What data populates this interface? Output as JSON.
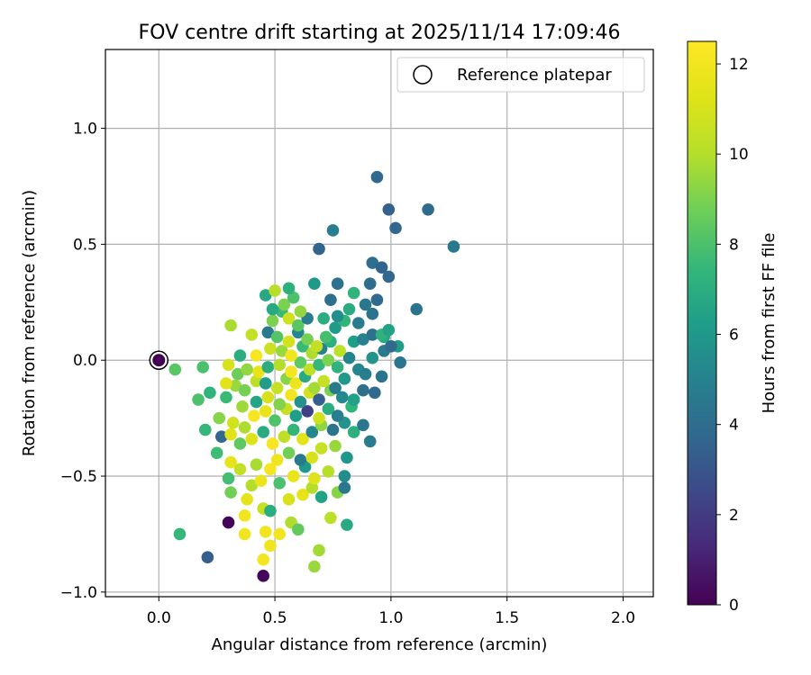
{
  "chart_data": {
    "type": "scatter",
    "title": "FOV centre drift starting at 2025/11/14 17:09:46",
    "xlabel": "Angular distance from reference (arcmin)",
    "ylabel": "Rotation from reference (arcmin)",
    "xlim": [
      -0.23,
      2.13
    ],
    "ylim": [
      -1.02,
      1.34
    ],
    "xticks": [
      "0.0",
      "0.5",
      "1.0",
      "1.5",
      "2.0"
    ],
    "xtick_values": [
      0,
      0.5,
      1.0,
      1.5,
      2.0
    ],
    "yticks": [
      "−1.0",
      "−0.5",
      "0.0",
      "0.5",
      "1.0"
    ],
    "ytick_values": [
      -1.0,
      -0.5,
      0,
      0.5,
      1.0
    ],
    "grid": true,
    "legend": {
      "label": "Reference platepar",
      "placement": "top-right"
    },
    "reference_point": {
      "x": 0,
      "y": 0
    },
    "colorbar": {
      "label": "Hours from first FF file",
      "min": 0,
      "max": 12.5,
      "ticks": [
        "0",
        "2",
        "4",
        "6",
        "8",
        "10",
        "12"
      ],
      "tick_values": [
        0,
        2,
        4,
        6,
        8,
        10,
        12
      ]
    },
    "points": [
      [
        0.45,
        -0.93,
        0.2
      ],
      [
        0.67,
        -0.89,
        9.5
      ],
      [
        0.21,
        -0.85,
        3.4
      ],
      [
        0.45,
        -0.86,
        12.1
      ],
      [
        0.48,
        -0.8,
        12.0
      ],
      [
        0.09,
        -0.75,
        7.5
      ],
      [
        0.3,
        -0.7,
        0.1
      ],
      [
        0.37,
        -0.75,
        12.0
      ],
      [
        0.46,
        -0.74,
        12.0
      ],
      [
        0.52,
        -0.75,
        12.0
      ],
      [
        0.57,
        -0.7,
        9.9
      ],
      [
        0.69,
        -0.82,
        9.7
      ],
      [
        0.81,
        -0.71,
        6.8
      ],
      [
        0.74,
        -0.68,
        10.2
      ],
      [
        0.6,
        -0.73,
        8.5
      ],
      [
        0.37,
        -0.67,
        12.0
      ],
      [
        0.45,
        -0.64,
        10.5
      ],
      [
        0.38,
        -0.6,
        11.5
      ],
      [
        0.48,
        -0.65,
        7.0
      ],
      [
        0.56,
        -0.6,
        11.0
      ],
      [
        0.62,
        -0.58,
        11.6
      ],
      [
        0.66,
        -0.55,
        10.0
      ],
      [
        0.7,
        -0.59,
        6.5
      ],
      [
        0.77,
        -0.57,
        9.2
      ],
      [
        0.8,
        -0.55,
        4.5
      ],
      [
        0.31,
        -0.57,
        8.8
      ],
      [
        0.4,
        -0.54,
        10.0
      ],
      [
        0.44,
        -0.52,
        11.8
      ],
      [
        0.48,
        -0.47,
        12.2
      ],
      [
        0.52,
        -0.53,
        8.0
      ],
      [
        0.58,
        -0.5,
        11.7
      ],
      [
        0.63,
        -0.46,
        6.0
      ],
      [
        0.67,
        -0.51,
        11.3
      ],
      [
        0.73,
        -0.48,
        10.1
      ],
      [
        0.8,
        -0.5,
        5.5
      ],
      [
        0.3,
        -0.51,
        7.8
      ],
      [
        0.35,
        -0.47,
        10.4
      ],
      [
        0.42,
        -0.45,
        9.8
      ],
      [
        0.51,
        -0.43,
        11.9
      ],
      [
        0.56,
        -0.4,
        8.8
      ],
      [
        0.61,
        -0.43,
        4.6
      ],
      [
        0.66,
        -0.42,
        11.0
      ],
      [
        0.7,
        -0.38,
        10.5
      ],
      [
        0.76,
        -0.37,
        9.5
      ],
      [
        0.81,
        -0.42,
        5.9
      ],
      [
        0.25,
        -0.4,
        7.7
      ],
      [
        0.31,
        -0.44,
        11.6
      ],
      [
        0.35,
        -0.36,
        8.4
      ],
      [
        0.4,
        -0.34,
        11.2
      ],
      [
        0.45,
        -0.31,
        6.9
      ],
      [
        0.49,
        -0.36,
        12.3
      ],
      [
        0.54,
        -0.33,
        10.3
      ],
      [
        0.58,
        -0.3,
        7.4
      ],
      [
        0.62,
        -0.34,
        11.4
      ],
      [
        0.66,
        -0.31,
        5.2
      ],
      [
        0.7,
        -0.28,
        9.3
      ],
      [
        0.75,
        -0.3,
        4.3
      ],
      [
        0.8,
        -0.27,
        5.8
      ],
      [
        0.84,
        -0.31,
        7.1
      ],
      [
        0.88,
        -0.28,
        4.4
      ],
      [
        0.91,
        -0.35,
        4.7
      ],
      [
        0.2,
        -0.3,
        7.5
      ],
      [
        0.27,
        -0.33,
        3.8
      ],
      [
        0.31,
        -0.32,
        11.3
      ],
      [
        0.37,
        -0.29,
        9.9
      ],
      [
        0.41,
        -0.24,
        12.2
      ],
      [
        0.46,
        -0.22,
        11.6
      ],
      [
        0.5,
        -0.26,
        8.1
      ],
      [
        0.55,
        -0.21,
        10.6
      ],
      [
        0.59,
        -0.24,
        6.3
      ],
      [
        0.64,
        -0.22,
        2.2
      ],
      [
        0.69,
        -0.25,
        10.8
      ],
      [
        0.73,
        -0.21,
        7.0
      ],
      [
        0.77,
        -0.24,
        4.8
      ],
      [
        0.83,
        -0.2,
        7.3
      ],
      [
        0.26,
        -0.25,
        9.2
      ],
      [
        0.32,
        -0.27,
        10.8
      ],
      [
        0.36,
        -0.2,
        9.6
      ],
      [
        0.42,
        -0.18,
        6.6
      ],
      [
        0.47,
        -0.16,
        11.0
      ],
      [
        0.52,
        -0.19,
        9.1
      ],
      [
        0.57,
        -0.15,
        12.0
      ],
      [
        0.61,
        -0.18,
        5.7
      ],
      [
        0.65,
        -0.14,
        10.9
      ],
      [
        0.69,
        -0.17,
        3.4
      ],
      [
        0.74,
        -0.13,
        9.0
      ],
      [
        0.79,
        -0.16,
        5.3
      ],
      [
        0.84,
        -0.17,
        6.4
      ],
      [
        0.88,
        -0.13,
        4.1
      ],
      [
        0.93,
        -0.14,
        3.9
      ],
      [
        0.17,
        -0.17,
        8.0
      ],
      [
        0.22,
        -0.14,
        7.3
      ],
      [
        0.29,
        -0.16,
        7.6
      ],
      [
        0.33,
        -0.11,
        9.5
      ],
      [
        0.37,
        -0.13,
        8.9
      ],
      [
        0.42,
        -0.09,
        10.2
      ],
      [
        0.46,
        -0.1,
        6.2
      ],
      [
        0.51,
        -0.12,
        10.5
      ],
      [
        0.55,
        -0.08,
        9.2
      ],
      [
        0.59,
        -0.1,
        11.8
      ],
      [
        0.63,
        -0.07,
        6.8
      ],
      [
        0.67,
        -0.12,
        9.7
      ],
      [
        0.71,
        -0.09,
        10.5
      ],
      [
        0.76,
        -0.12,
        4.6
      ],
      [
        0.8,
        -0.08,
        6.0
      ],
      [
        0.86,
        -0.04,
        5.2
      ],
      [
        0.89,
        -0.06,
        4.8
      ],
      [
        0.96,
        -0.07,
        4.3
      ],
      [
        1.04,
        -0.01,
        4.4
      ],
      [
        0.07,
        -0.04,
        8.3
      ],
      [
        0.19,
        -0.03,
        8.0
      ],
      [
        0.29,
        -0.1,
        11.4
      ],
      [
        0.34,
        -0.06,
        8.7
      ],
      [
        0.38,
        -0.04,
        9.4
      ],
      [
        0.43,
        -0.05,
        11.6
      ],
      [
        0.47,
        -0.03,
        7.0
      ],
      [
        0.52,
        -0.02,
        10.0
      ],
      [
        0.57,
        -0.05,
        12.1
      ],
      [
        0.61,
        -0.01,
        8.4
      ],
      [
        0.65,
        -0.04,
        10.3
      ],
      [
        0.69,
        -0.02,
        7.5
      ],
      [
        0.73,
        0.0,
        9.0
      ],
      [
        0.77,
        -0.03,
        7.2
      ],
      [
        0.82,
        0.01,
        5.1
      ],
      [
        0.92,
        0.01,
        5.8
      ],
      [
        0.97,
        0.04,
        4.6
      ],
      [
        1.03,
        0.06,
        6.2
      ],
      [
        0.3,
        -0.02,
        11.0
      ],
      [
        0.35,
        0.02,
        7.0
      ],
      [
        0.42,
        0.02,
        12.3
      ],
      [
        0.48,
        0.05,
        10.7
      ],
      [
        0.53,
        0.04,
        9.5
      ],
      [
        0.57,
        0.02,
        12.0
      ],
      [
        0.62,
        0.06,
        7.6
      ],
      [
        0.66,
        0.03,
        9.9
      ],
      [
        0.7,
        0.05,
        4.9
      ],
      [
        0.74,
        0.08,
        7.1
      ],
      [
        0.78,
        0.04,
        10.2
      ],
      [
        0.84,
        0.08,
        6.3
      ],
      [
        0.88,
        0.09,
        5.0
      ],
      [
        0.92,
        0.11,
        4.2
      ],
      [
        0.97,
        0.1,
        6.7
      ],
      [
        1.0,
        0.06,
        3.9
      ],
      [
        0.31,
        0.15,
        9.8
      ],
      [
        0.4,
        0.11,
        10.4
      ],
      [
        0.47,
        0.12,
        4.6
      ],
      [
        0.51,
        0.1,
        8.2
      ],
      [
        0.56,
        0.08,
        10.9
      ],
      [
        0.6,
        0.12,
        5.2
      ],
      [
        0.64,
        0.09,
        8.9
      ],
      [
        0.68,
        0.06,
        10.4
      ],
      [
        0.72,
        0.1,
        7.9
      ],
      [
        0.76,
        0.14,
        6.1
      ],
      [
        0.8,
        0.17,
        7.4
      ],
      [
        0.86,
        0.16,
        4.7
      ],
      [
        0.92,
        0.2,
        4.3
      ],
      [
        0.96,
        0.11,
        7.2
      ],
      [
        0.99,
        0.13,
        6.5
      ],
      [
        0.49,
        0.17,
        9.0
      ],
      [
        0.53,
        0.21,
        7.6
      ],
      [
        0.56,
        0.18,
        10.7
      ],
      [
        0.6,
        0.15,
        8.3
      ],
      [
        0.64,
        0.18,
        4.8
      ],
      [
        0.71,
        0.18,
        7.0
      ],
      [
        0.77,
        0.19,
        5.6
      ],
      [
        0.82,
        0.22,
        6.9
      ],
      [
        0.89,
        0.24,
        4.5
      ],
      [
        0.94,
        0.26,
        3.9
      ],
      [
        0.49,
        0.22,
        6.8
      ],
      [
        0.54,
        0.24,
        9.0
      ],
      [
        0.58,
        0.27,
        8.0
      ],
      [
        0.61,
        0.21,
        9.4
      ],
      [
        0.67,
        0.33,
        6.0
      ],
      [
        0.74,
        0.26,
        4.1
      ],
      [
        0.84,
        0.29,
        7.3
      ],
      [
        1.11,
        0.22,
        4.3
      ],
      [
        0.46,
        0.28,
        6.7
      ],
      [
        0.5,
        0.3,
        10.1
      ],
      [
        0.56,
        0.31,
        7.1
      ],
      [
        0.69,
        0.48,
        3.6
      ],
      [
        0.77,
        0.33,
        4.2
      ],
      [
        0.91,
        0.33,
        4.0
      ],
      [
        0.92,
        0.42,
        4.1
      ],
      [
        0.75,
        0.56,
        4.8
      ],
      [
        0.96,
        0.4,
        3.6
      ],
      [
        0.99,
        0.36,
        3.7
      ],
      [
        1.27,
        0.49,
        4.5
      ],
      [
        1.02,
        0.57,
        3.7
      ],
      [
        0.99,
        0.65,
        3.5
      ],
      [
        1.16,
        0.65,
        3.9
      ],
      [
        0.94,
        0.79,
        3.8
      ]
    ]
  }
}
